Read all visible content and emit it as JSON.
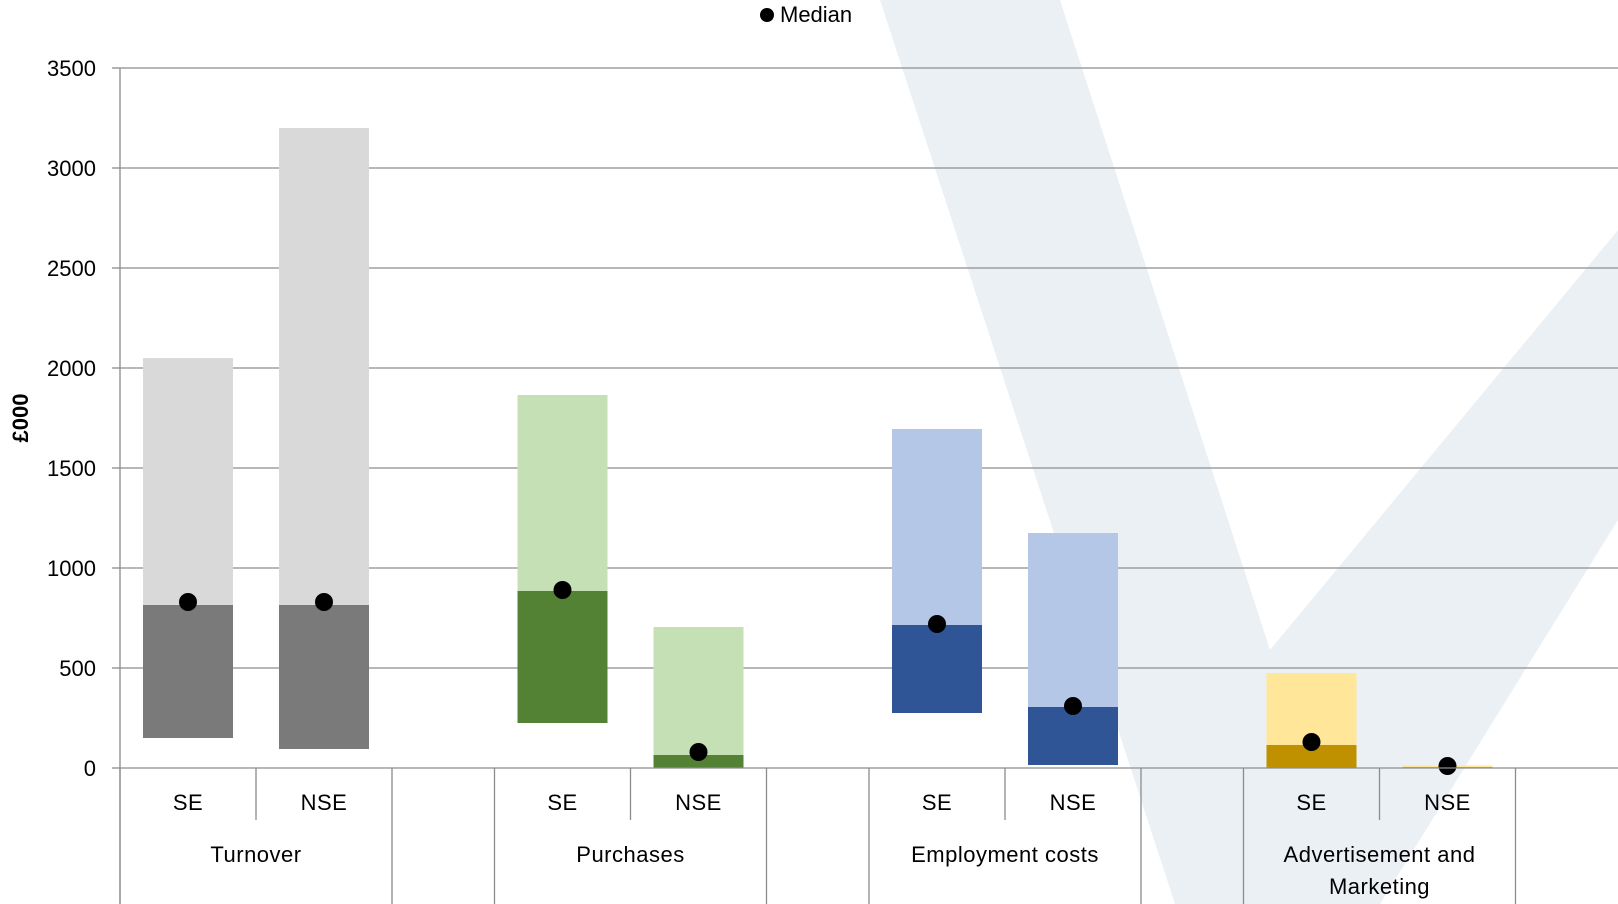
{
  "chart_data": {
    "type": "bar",
    "ylabel": "£000",
    "ylim": [
      0,
      3500
    ],
    "yticks": [
      0,
      500,
      1000,
      1500,
      2000,
      2500,
      3000,
      3500
    ],
    "grid": true,
    "legend": {
      "position": "top-center",
      "entries": [
        "Median"
      ]
    },
    "groups": [
      {
        "name": "Turnover",
        "light_color": "#d9d9d9",
        "dark_color": "#7a7a7a",
        "bars": [
          {
            "label": "SE",
            "low": 150,
            "q_split": 815,
            "high": 2050,
            "median": 830
          },
          {
            "label": "NSE",
            "low": 95,
            "q_split": 815,
            "high": 3200,
            "median": 830
          }
        ]
      },
      {
        "name": "Purchases",
        "light_color": "#c5e0b4",
        "dark_color": "#548235",
        "bars": [
          {
            "label": "SE",
            "low": 225,
            "q_split": 885,
            "high": 1865,
            "median": 890
          },
          {
            "label": "NSE",
            "low": 0,
            "q_split": 65,
            "high": 705,
            "median": 80
          }
        ]
      },
      {
        "name": "Employment costs",
        "light_color": "#b4c7e7",
        "dark_color": "#2f5597",
        "bars": [
          {
            "label": "SE",
            "low": 275,
            "q_split": 715,
            "high": 1695,
            "median": 720
          },
          {
            "label": "NSE",
            "low": 15,
            "q_split": 305,
            "high": 1175,
            "median": 310
          }
        ]
      },
      {
        "name": "Advertisement and Marketing",
        "name_lines": [
          "Advertisement and",
          "Marketing"
        ],
        "light_color": "#ffe699",
        "dark_color": "#bf9000",
        "bars": [
          {
            "label": "SE",
            "low": 0,
            "q_split": 115,
            "high": 475,
            "median": 130
          },
          {
            "label": "NSE",
            "low": 0,
            "q_split": 4,
            "high": 12,
            "median": 10
          }
        ]
      }
    ]
  }
}
